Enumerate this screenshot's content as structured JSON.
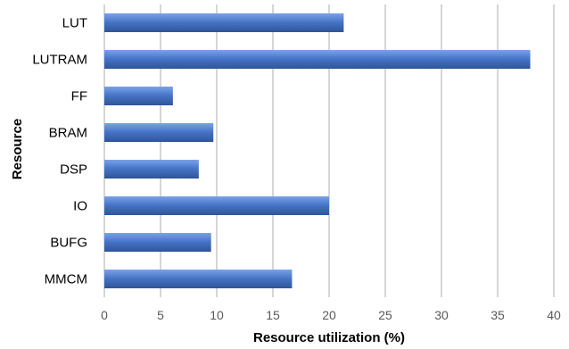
{
  "chart_data": {
    "type": "bar",
    "orientation": "horizontal",
    "categories": [
      "LUT",
      "LUTRAM",
      "FF",
      "BRAM",
      "DSP",
      "IO",
      "BUFG",
      "MMCM"
    ],
    "values": [
      21.3,
      37.9,
      6.1,
      9.7,
      8.4,
      20.0,
      9.5,
      16.7
    ],
    "title": "",
    "xlabel": "Resource utilization (%)",
    "ylabel": "Resource",
    "xlim": [
      0,
      40
    ],
    "xticks": [
      0,
      5,
      10,
      15,
      20,
      25,
      30,
      35,
      40
    ],
    "grid": "vertical",
    "legend": "none",
    "colors": {
      "bar_light": "#7aa2e8",
      "bar": "#4472c4",
      "bar_dark": "#2f5597",
      "grid": "#c8c8c8",
      "tick_text": "#595959"
    }
  }
}
